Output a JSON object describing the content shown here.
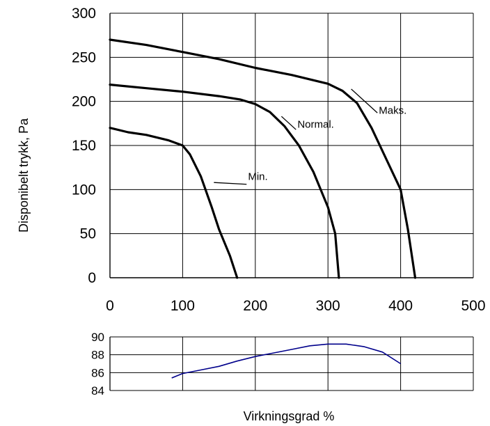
{
  "chart_data": [
    {
      "type": "line",
      "ylabel": "Disponibelt trykk, Pa",
      "xlabel": "",
      "xlim": [
        0,
        500
      ],
      "ylim": [
        0,
        300
      ],
      "xticks": [
        "0",
        "100",
        "200",
        "300",
        "400",
        "500"
      ],
      "yticks": [
        "0",
        "50",
        "100",
        "150",
        "200",
        "250",
        "300"
      ],
      "grid": true,
      "series": [
        {
          "name": "Maks.",
          "x": [
            0,
            50,
            100,
            150,
            200,
            250,
            300,
            320,
            340,
            360,
            380,
            400,
            410,
            420
          ],
          "y": [
            270,
            264,
            256,
            248,
            238,
            230,
            220,
            212,
            198,
            170,
            135,
            100,
            55,
            0
          ]
        },
        {
          "name": "Normal.",
          "x": [
            0,
            50,
            100,
            150,
            180,
            200,
            220,
            240,
            260,
            280,
            300,
            310,
            315
          ],
          "y": [
            219,
            215,
            211,
            206,
            202,
            197,
            188,
            172,
            150,
            120,
            80,
            50,
            0
          ]
        },
        {
          "name": "Min.",
          "x": [
            0,
            25,
            50,
            80,
            100,
            110,
            125,
            140,
            150,
            165,
            175
          ],
          "y": [
            170,
            165,
            162,
            156,
            150,
            140,
            115,
            80,
            55,
            25,
            0
          ]
        }
      ]
    },
    {
      "type": "line",
      "xlabel": "Virkningsgrad %",
      "ylabel": "",
      "xlim": [
        0,
        500
      ],
      "ylim": [
        84,
        90
      ],
      "yticks": [
        "84",
        "86",
        "88",
        "90"
      ],
      "grid": true,
      "series": [
        {
          "name": "",
          "color": "#00008b",
          "x": [
            85,
            100,
            125,
            150,
            175,
            200,
            225,
            250,
            275,
            300,
            325,
            350,
            375,
            400
          ],
          "y": [
            85.4,
            85.9,
            86.3,
            86.7,
            87.3,
            87.8,
            88.2,
            88.6,
            89.0,
            89.2,
            89.2,
            88.9,
            88.3,
            87.0
          ]
        }
      ]
    }
  ],
  "callouts": [
    {
      "series": "Maks.",
      "text": "Maks."
    },
    {
      "series": "Normal.",
      "text": "Normal."
    },
    {
      "series": "Min.",
      "text": "Min."
    }
  ]
}
